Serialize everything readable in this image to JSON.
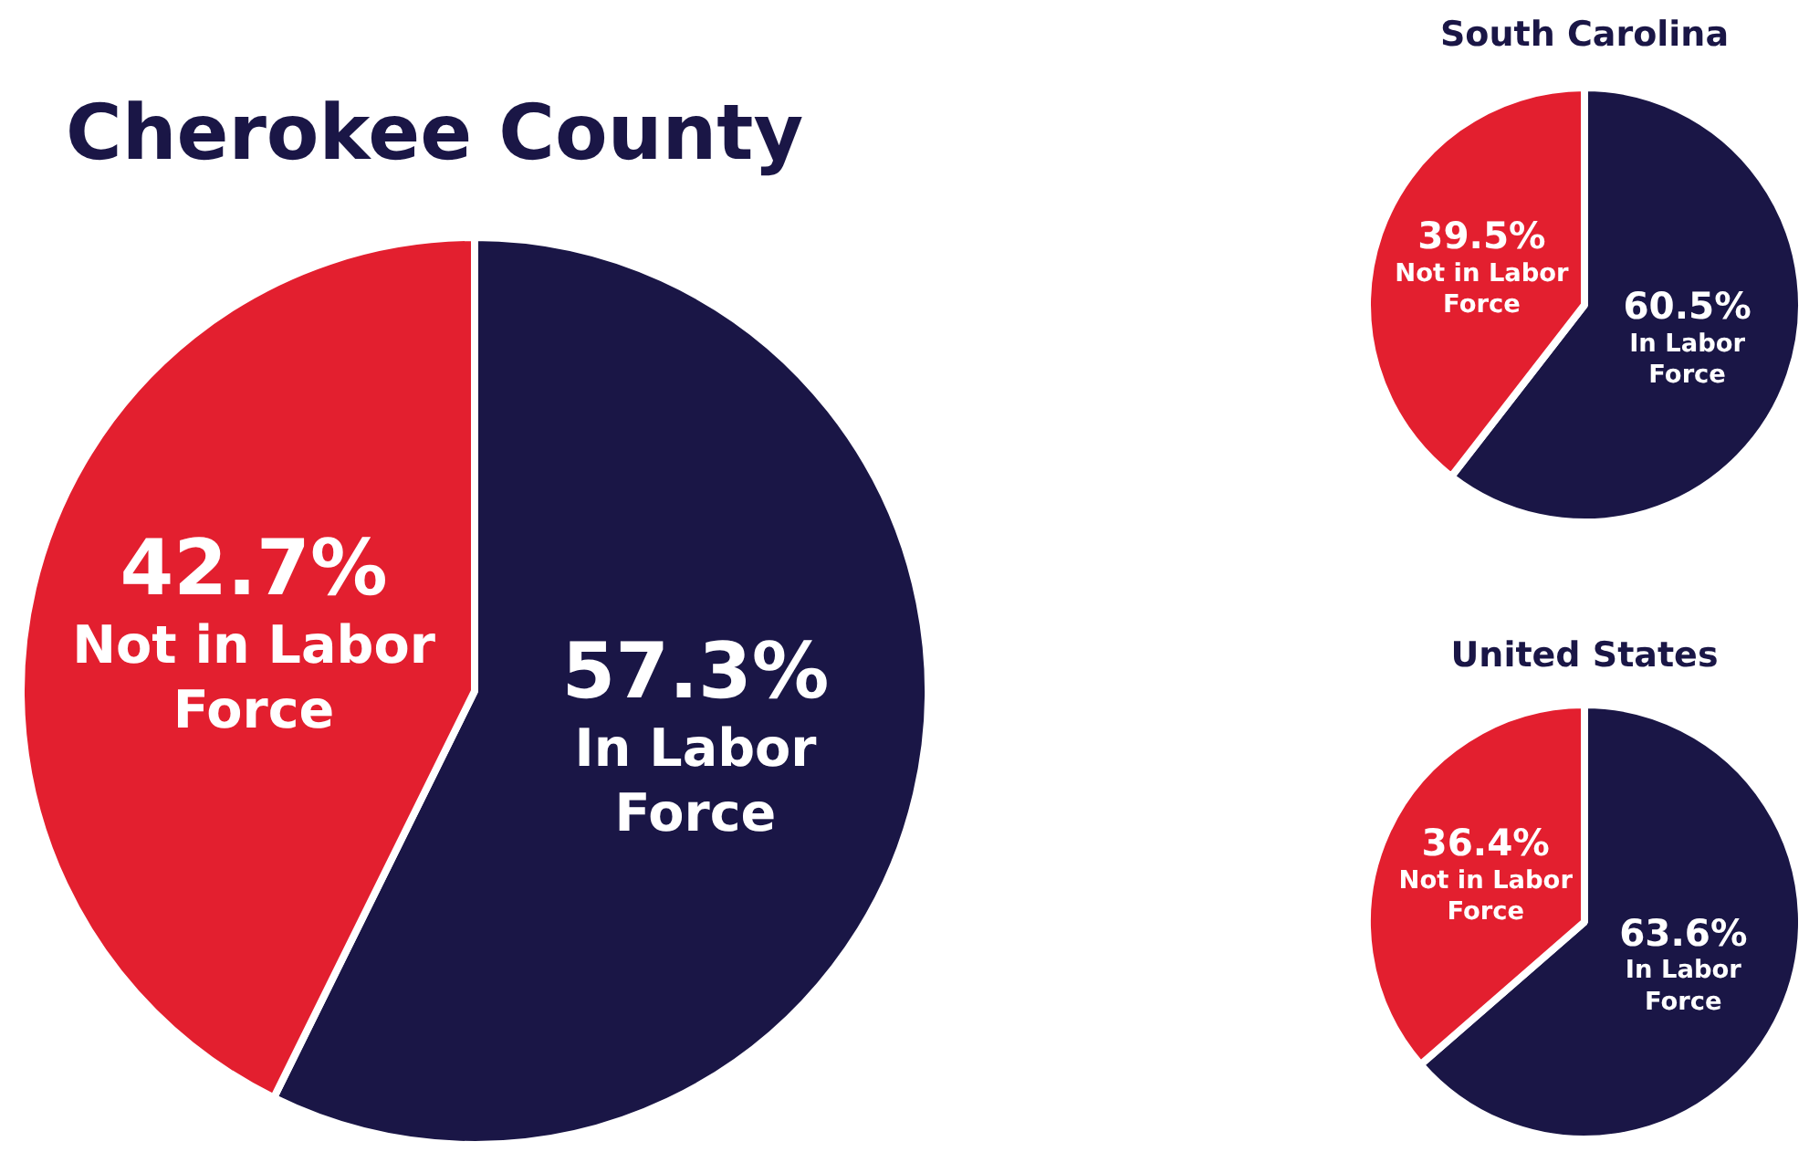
{
  "chart_data": [
    {
      "type": "pie",
      "title": "Cherokee County",
      "categories": [
        "In Labor Force",
        "Not in Labor Force"
      ],
      "values": [
        57.3,
        42.7
      ],
      "colors": [
        "#1a1646",
        "#e31f2f"
      ],
      "value_labels": [
        "57.3%",
        "42.7%"
      ]
    },
    {
      "type": "pie",
      "title": "South Carolina",
      "categories": [
        "In Labor Force",
        "Not in Labor Force"
      ],
      "values": [
        60.5,
        39.5
      ],
      "colors": [
        "#1a1646",
        "#e31f2f"
      ],
      "value_labels": [
        "60.5%",
        "39.5%"
      ]
    },
    {
      "type": "pie",
      "title": "United States",
      "categories": [
        "In Labor Force",
        "Not in Labor Force"
      ],
      "values": [
        63.6,
        36.4
      ],
      "colors": [
        "#1a1646",
        "#e31f2f"
      ],
      "value_labels": [
        "63.6%",
        "36.4%"
      ]
    }
  ]
}
